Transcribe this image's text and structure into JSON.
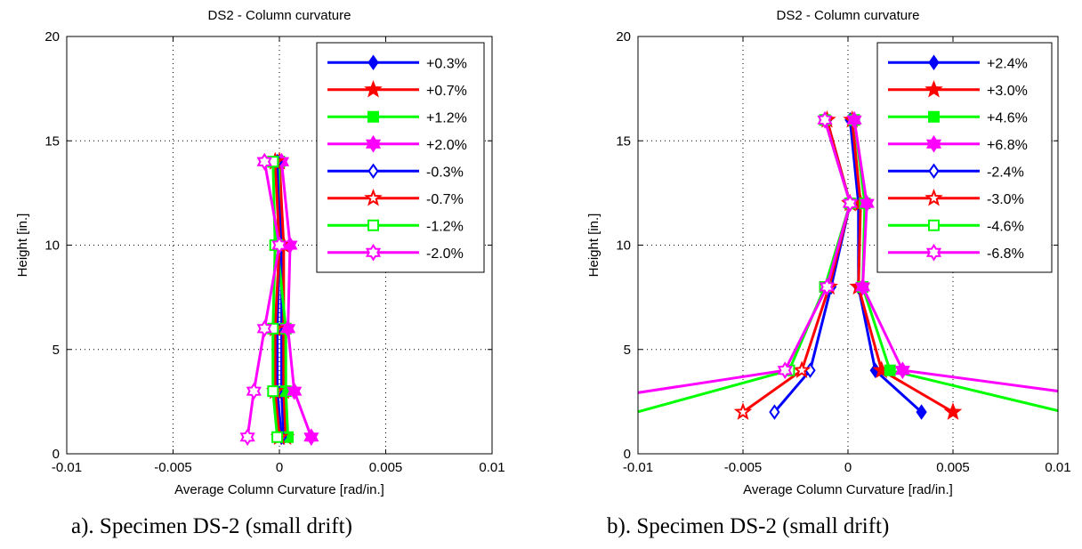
{
  "chart_data": [
    {
      "type": "line",
      "title": "DS2 - Column curvature",
      "xlabel": "Average Column Curvature [rad/in.]",
      "ylabel": "Height [in.]",
      "xlim": [
        -0.01,
        0.01
      ],
      "ylim": [
        0,
        20
      ],
      "xticks": [
        -0.01,
        -0.005,
        0,
        0.005,
        0.01
      ],
      "xtick_labels": [
        "-0.01",
        "-0.005",
        "0",
        "0.005",
        "0.01"
      ],
      "yticks": [
        0,
        5,
        10,
        15,
        20
      ],
      "ytick_labels": [
        "0",
        "5",
        "10",
        "15",
        "20"
      ],
      "grid": true,
      "legend_position": "top-right",
      "series": [
        {
          "name": "+0.3%",
          "color": "#0000ff",
          "marker": "diamond",
          "filled": true,
          "x": [
            0.0002,
            0.0001,
            0.0001,
            0.0001,
            0.0,
            0.0
          ],
          "y": [
            0.8,
            3,
            6,
            10,
            14,
            14
          ]
        },
        {
          "name": "+0.7%",
          "color": "#ff0000",
          "marker": "star",
          "filled": true,
          "x": [
            0.0003,
            0.0002,
            0.0002,
            0.0002,
            0.0,
            0.0
          ],
          "y": [
            0.8,
            3,
            6,
            10,
            14,
            14
          ]
        },
        {
          "name": "+1.2%",
          "color": "#00ff00",
          "marker": "square",
          "filled": true,
          "x": [
            0.0004,
            0.0003,
            0.0003,
            -0.0001,
            0.0,
            0.0
          ],
          "y": [
            0.8,
            3,
            6,
            10,
            14,
            14
          ]
        },
        {
          "name": "+2.0%",
          "color": "#ff00ff",
          "marker": "hexagram",
          "filled": true,
          "x": [
            0.0015,
            0.0007,
            0.0004,
            0.0005,
            0.0001,
            0.0001
          ],
          "y": [
            0.8,
            3,
            6,
            10,
            14,
            14
          ]
        },
        {
          "name": "-0.3%",
          "color": "#0000ff",
          "marker": "diamond",
          "filled": false,
          "x": [
            0.0001,
            -0.0001,
            -0.0001,
            0.0,
            -0.0001,
            -0.0001
          ],
          "y": [
            0.8,
            3,
            6,
            10,
            14,
            14
          ]
        },
        {
          "name": "-0.7%",
          "color": "#ff0000",
          "marker": "star",
          "filled": false,
          "x": [
            0.0,
            -0.0002,
            -0.0002,
            0.0,
            -0.0002,
            -0.0002
          ],
          "y": [
            0.8,
            3,
            6,
            10,
            14,
            14
          ]
        },
        {
          "name": "-1.2%",
          "color": "#00ff00",
          "marker": "square",
          "filled": false,
          "x": [
            -0.0001,
            -0.0003,
            -0.0003,
            -0.0002,
            -0.0003,
            -0.0003
          ],
          "y": [
            0.8,
            3,
            6,
            10,
            14,
            14
          ]
        },
        {
          "name": "-2.0%",
          "color": "#ff00ff",
          "marker": "hexagram",
          "filled": false,
          "x": [
            -0.0015,
            -0.0012,
            -0.0007,
            0.0,
            -0.0007,
            -0.0007
          ],
          "y": [
            0.8,
            3,
            6,
            10,
            14,
            14
          ]
        }
      ]
    },
    {
      "type": "line",
      "title": "DS2 - Column curvature",
      "xlabel": "Average Column Curvature [rad/in.]",
      "ylabel": "Height [in.]",
      "xlim": [
        -0.01,
        0.01
      ],
      "ylim": [
        0,
        20
      ],
      "xticks": [
        -0.01,
        -0.005,
        0,
        0.005,
        0.01
      ],
      "xtick_labels": [
        "-0.01",
        "-0.005",
        "0",
        "0.005",
        "0.01"
      ],
      "yticks": [
        0,
        5,
        10,
        15,
        20
      ],
      "ytick_labels": [
        "0",
        "5",
        "10",
        "15",
        "20"
      ],
      "grid": true,
      "legend_position": "top-right",
      "series": [
        {
          "name": "+2.4%",
          "color": "#0000ff",
          "marker": "diamond",
          "filled": true,
          "x": [
            0.0035,
            0.0013,
            0.0005,
            0.0005,
            0.0001
          ],
          "y": [
            2,
            4,
            8,
            12,
            16
          ]
        },
        {
          "name": "+3.0%",
          "color": "#ff0000",
          "marker": "star",
          "filled": true,
          "x": [
            0.005,
            0.0016,
            0.0005,
            0.0006,
            0.0002
          ],
          "y": [
            2,
            4,
            8,
            12,
            16
          ]
        },
        {
          "name": "+4.6%",
          "color": "#00ff00",
          "marker": "square",
          "filled": true,
          "x": [
            0.0115,
            0.002,
            0.0007,
            0.0008,
            0.0003
          ],
          "y": [
            1.7,
            4,
            8,
            12,
            16
          ]
        },
        {
          "name": "+6.8%",
          "color": "#ff00ff",
          "marker": "hexagram",
          "filled": true,
          "x": [
            0.0115,
            0.0026,
            0.0007,
            0.0009,
            0.0003
          ],
          "y": [
            2.8,
            4,
            8,
            12,
            16
          ]
        },
        {
          "name": "-2.4%",
          "color": "#0000ff",
          "marker": "diamond",
          "filled": false,
          "x": [
            -0.0035,
            -0.0018,
            -0.0008,
            0.0001,
            -0.001
          ],
          "y": [
            2,
            4,
            8,
            12,
            16
          ]
        },
        {
          "name": "-3.0%",
          "color": "#ff0000",
          "marker": "star",
          "filled": false,
          "x": [
            -0.005,
            -0.0022,
            -0.0009,
            0.0001,
            -0.001
          ],
          "y": [
            2,
            4,
            8,
            12,
            16
          ]
        },
        {
          "name": "-4.6%",
          "color": "#00ff00",
          "marker": "square",
          "filled": false,
          "x": [
            -0.0115,
            -0.0028,
            -0.0011,
            0.0001,
            -0.0011
          ],
          "y": [
            1.6,
            4,
            8,
            12,
            16
          ]
        },
        {
          "name": "-6.8%",
          "color": "#ff00ff",
          "marker": "hexagram",
          "filled": false,
          "x": [
            -0.0115,
            -0.003,
            -0.001,
            0.0001,
            -0.0011
          ],
          "y": [
            2.7,
            4,
            8,
            12,
            16
          ]
        }
      ]
    }
  ],
  "captions": {
    "a": "a). Specimen DS-2 (small drift)",
    "b": "b). Specimen DS-2 (small drift)"
  }
}
